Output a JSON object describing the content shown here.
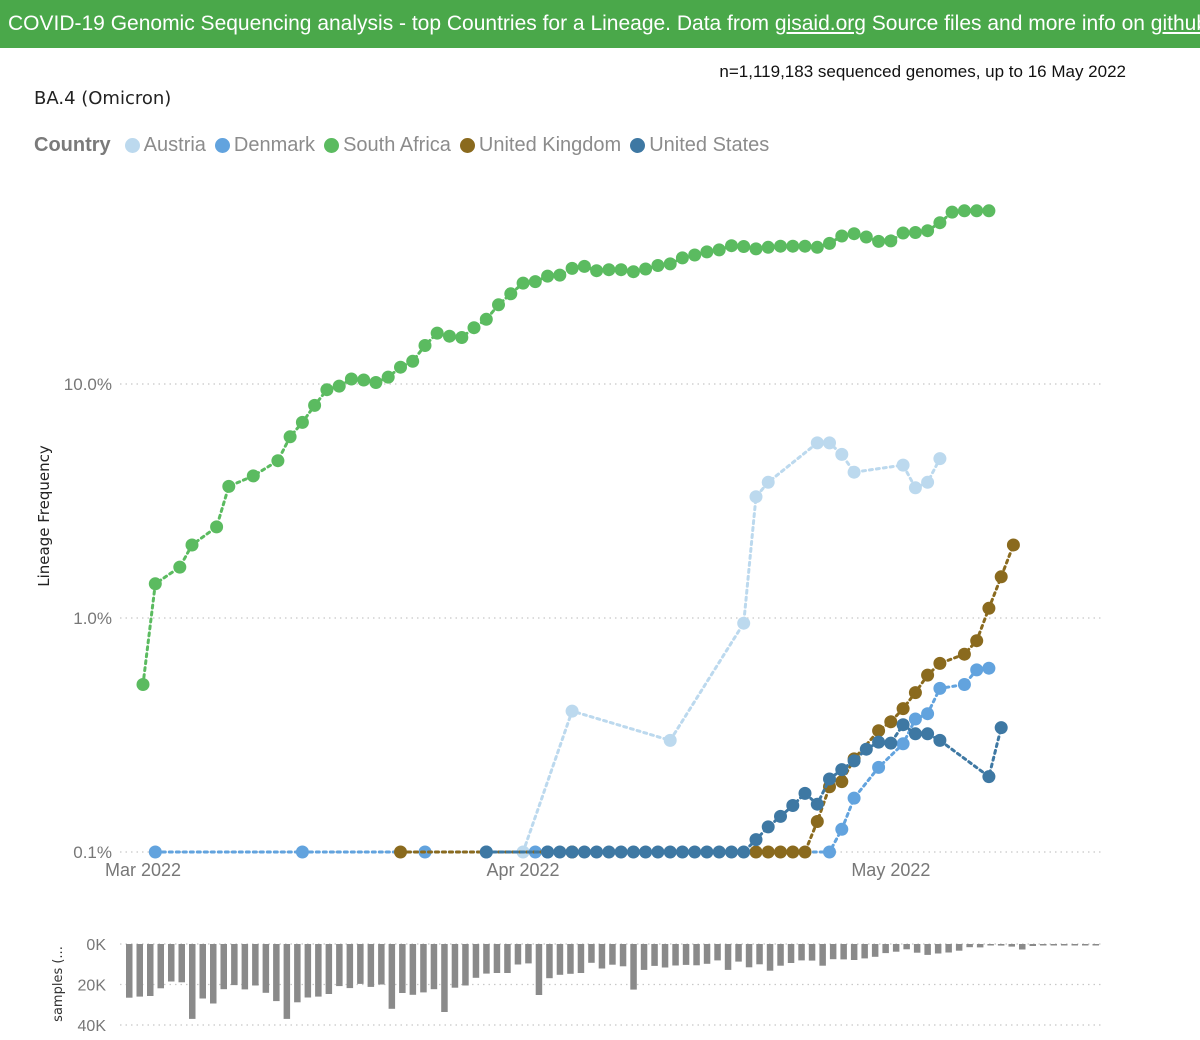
{
  "header": {
    "pre": "COVID-19 Genomic Sequencing analysis - top Countries for a Lineage. Data from ",
    "link1": "gisaid.org",
    "mid": " Source files and more info on ",
    "link2": "github",
    "post": "."
  },
  "meta": "n=1,119,183 sequenced genomes, up to 16 May 2022",
  "lineage_title": "BA.4 (Omicron)",
  "legend_title": "Country",
  "chart_data": [
    {
      "type": "line",
      "title": "BA.4 (Omicron)",
      "ylabel": "Lineage Frequency",
      "yscale": "log",
      "ylim": [
        0.1,
        55
      ],
      "yticks": [
        {
          "v": 0.1,
          "label": "0.1%"
        },
        {
          "v": 1,
          "label": "1.0%"
        },
        {
          "v": 10,
          "label": "10.0%"
        }
      ],
      "xlim": [
        "2022-03-01",
        "2022-05-17"
      ],
      "xticks": [
        {
          "date": "2022-03-01",
          "label": "Mar 2022"
        },
        {
          "date": "2022-04-01",
          "label": "Apr 2022"
        },
        {
          "date": "2022-05-01",
          "label": "May 2022"
        }
      ],
      "grid": true,
      "legend_position": "top-left",
      "series": [
        {
          "name": "Austria",
          "color": "#bcd9ee",
          "points": [
            [
              "2022-04-01",
              0.1
            ],
            [
              "2022-04-05",
              0.4
            ],
            [
              "2022-04-13",
              0.3
            ],
            [
              "2022-04-19",
              0.95
            ],
            [
              "2022-04-20",
              3.3
            ],
            [
              "2022-04-21",
              3.8
            ],
            [
              "2022-04-25",
              5.6
            ],
            [
              "2022-04-26",
              5.6
            ],
            [
              "2022-04-27",
              5.0
            ],
            [
              "2022-04-28",
              4.2
            ],
            [
              "2022-05-02",
              4.5
            ],
            [
              "2022-05-03",
              3.6
            ],
            [
              "2022-05-04",
              3.8
            ],
            [
              "2022-05-05",
              4.8
            ]
          ]
        },
        {
          "name": "Denmark",
          "color": "#62a3de",
          "points": [
            [
              "2022-03-02",
              0.1
            ],
            [
              "2022-03-14",
              0.1
            ],
            [
              "2022-03-24",
              0.1
            ],
            [
              "2022-03-29",
              0.1
            ],
            [
              "2022-04-02",
              0.1
            ],
            [
              "2022-04-03",
              0.1
            ],
            [
              "2022-04-26",
              0.1
            ],
            [
              "2022-04-27",
              0.125
            ],
            [
              "2022-04-28",
              0.17
            ],
            [
              "2022-04-30",
              0.23
            ],
            [
              "2022-05-02",
              0.29
            ],
            [
              "2022-05-03",
              0.37
            ],
            [
              "2022-05-04",
              0.39
            ],
            [
              "2022-05-05",
              0.5
            ],
            [
              "2022-05-07",
              0.52
            ],
            [
              "2022-05-08",
              0.6
            ],
            [
              "2022-05-09",
              0.61
            ]
          ]
        },
        {
          "name": "South Africa",
          "color": "#5bbb60",
          "points": [
            [
              "2022-03-01",
              0.52
            ],
            [
              "2022-03-02",
              1.4
            ],
            [
              "2022-03-04",
              1.65
            ],
            [
              "2022-03-05",
              2.05
            ],
            [
              "2022-03-07",
              2.45
            ],
            [
              "2022-03-08",
              3.65
            ],
            [
              "2022-03-10",
              4.05
            ],
            [
              "2022-03-12",
              4.7
            ],
            [
              "2022-03-13",
              5.95
            ],
            [
              "2022-03-14",
              6.85
            ],
            [
              "2022-03-15",
              8.1
            ],
            [
              "2022-03-16",
              9.45
            ],
            [
              "2022-03-17",
              9.8
            ],
            [
              "2022-03-18",
              10.5
            ],
            [
              "2022-03-19",
              10.4
            ],
            [
              "2022-03-20",
              10.15
            ],
            [
              "2022-03-21",
              10.7
            ],
            [
              "2022-03-22",
              11.8
            ],
            [
              "2022-03-23",
              12.5
            ],
            [
              "2022-03-24",
              14.6
            ],
            [
              "2022-03-25",
              16.5
            ],
            [
              "2022-03-26",
              16.0
            ],
            [
              "2022-03-27",
              15.8
            ],
            [
              "2022-03-28",
              17.4
            ],
            [
              "2022-03-29",
              18.9
            ],
            [
              "2022-03-30",
              21.8
            ],
            [
              "2022-03-31",
              24.3
            ],
            [
              "2022-04-01",
              27.0
            ],
            [
              "2022-04-02",
              27.4
            ],
            [
              "2022-04-03",
              28.9
            ],
            [
              "2022-04-04",
              29.2
            ],
            [
              "2022-04-05",
              31.2
            ],
            [
              "2022-04-06",
              31.8
            ],
            [
              "2022-04-07",
              30.5
            ],
            [
              "2022-04-08",
              30.8
            ],
            [
              "2022-04-09",
              30.8
            ],
            [
              "2022-04-10",
              30.2
            ],
            [
              "2022-04-11",
              31.0
            ],
            [
              "2022-04-12",
              32.1
            ],
            [
              "2022-04-13",
              32.6
            ],
            [
              "2022-04-14",
              34.6
            ],
            [
              "2022-04-15",
              35.6
            ],
            [
              "2022-04-16",
              36.7
            ],
            [
              "2022-04-17",
              37.4
            ],
            [
              "2022-04-18",
              39.0
            ],
            [
              "2022-04-19",
              38.7
            ],
            [
              "2022-04-20",
              37.8
            ],
            [
              "2022-04-21",
              38.4
            ],
            [
              "2022-04-22",
              38.8
            ],
            [
              "2022-04-23",
              38.8
            ],
            [
              "2022-04-24",
              38.8
            ],
            [
              "2022-04-25",
              38.4
            ],
            [
              "2022-04-26",
              39.9
            ],
            [
              "2022-04-27",
              42.9
            ],
            [
              "2022-04-28",
              43.9
            ],
            [
              "2022-04-29",
              42.5
            ],
            [
              "2022-04-30",
              40.7
            ],
            [
              "2022-05-01",
              40.9
            ],
            [
              "2022-05-02",
              44.2
            ],
            [
              "2022-05-03",
              44.4
            ],
            [
              "2022-05-04",
              45.2
            ],
            [
              "2022-05-05",
              48.9
            ],
            [
              "2022-05-06",
              54.3
            ],
            [
              "2022-05-07",
              55.0
            ],
            [
              "2022-05-08",
              55.0
            ],
            [
              "2022-05-09",
              55.0
            ]
          ]
        },
        {
          "name": "United Kingdom",
          "color": "#8a6a1e",
          "points": [
            [
              "2022-03-22",
              0.1
            ],
            [
              "2022-04-05",
              0.1
            ],
            [
              "2022-04-20",
              0.1
            ],
            [
              "2022-04-21",
              0.1
            ],
            [
              "2022-04-22",
              0.1
            ],
            [
              "2022-04-23",
              0.1
            ],
            [
              "2022-04-24",
              0.1
            ],
            [
              "2022-04-25",
              0.135
            ],
            [
              "2022-04-26",
              0.19
            ],
            [
              "2022-04-27",
              0.2
            ],
            [
              "2022-04-28",
              0.25
            ],
            [
              "2022-04-30",
              0.33
            ],
            [
              "2022-05-01",
              0.36
            ],
            [
              "2022-05-02",
              0.41
            ],
            [
              "2022-05-03",
              0.48
            ],
            [
              "2022-05-04",
              0.57
            ],
            [
              "2022-05-05",
              0.64
            ],
            [
              "2022-05-07",
              0.7
            ],
            [
              "2022-05-08",
              0.8
            ],
            [
              "2022-05-09",
              1.1
            ],
            [
              "2022-05-10",
              1.5
            ],
            [
              "2022-05-11",
              2.05
            ]
          ]
        },
        {
          "name": "United States",
          "color": "#3e78a3",
          "points": [
            [
              "2022-03-29",
              0.1
            ],
            [
              "2022-04-03",
              0.1
            ],
            [
              "2022-04-04",
              0.1
            ],
            [
              "2022-04-05",
              0.1
            ],
            [
              "2022-04-06",
              0.1
            ],
            [
              "2022-04-07",
              0.1
            ],
            [
              "2022-04-08",
              0.1
            ],
            [
              "2022-04-09",
              0.1
            ],
            [
              "2022-04-10",
              0.1
            ],
            [
              "2022-04-11",
              0.1
            ],
            [
              "2022-04-12",
              0.1
            ],
            [
              "2022-04-13",
              0.1
            ],
            [
              "2022-04-14",
              0.1
            ],
            [
              "2022-04-15",
              0.1
            ],
            [
              "2022-04-16",
              0.1
            ],
            [
              "2022-04-17",
              0.1
            ],
            [
              "2022-04-18",
              0.1
            ],
            [
              "2022-04-19",
              0.1
            ],
            [
              "2022-04-20",
              0.113
            ],
            [
              "2022-04-21",
              0.128
            ],
            [
              "2022-04-22",
              0.142
            ],
            [
              "2022-04-23",
              0.158
            ],
            [
              "2022-04-24",
              0.178
            ],
            [
              "2022-04-25",
              0.16
            ],
            [
              "2022-04-26",
              0.205
            ],
            [
              "2022-04-27",
              0.225
            ],
            [
              "2022-04-28",
              0.245
            ],
            [
              "2022-04-29",
              0.275
            ],
            [
              "2022-04-30",
              0.295
            ],
            [
              "2022-05-01",
              0.292
            ],
            [
              "2022-05-02",
              0.35
            ],
            [
              "2022-05-03",
              0.32
            ],
            [
              "2022-05-04",
              0.32
            ],
            [
              "2022-05-05",
              0.3
            ],
            [
              "2022-05-09",
              0.21
            ],
            [
              "2022-05-10",
              0.34
            ]
          ]
        }
      ]
    },
    {
      "type": "bar",
      "ylabel": "samples (...",
      "yticks": [
        {
          "v": 0,
          "label": "0K"
        },
        {
          "v": 20000,
          "label": "20K"
        },
        {
          "v": 40000,
          "label": "40K"
        }
      ],
      "ylim": [
        0,
        42000
      ],
      "grid": true,
      "x_start": "2022-03-01",
      "values": [
        26500,
        26000,
        25700,
        21900,
        18500,
        18900,
        37000,
        26900,
        29400,
        22300,
        20300,
        22400,
        20500,
        24100,
        28200,
        37000,
        28800,
        26400,
        26000,
        24700,
        20800,
        21800,
        19700,
        21200,
        20000,
        32000,
        24200,
        25100,
        23900,
        22300,
        33600,
        21600,
        20500,
        16700,
        14600,
        14300,
        14300,
        10100,
        9600,
        25200,
        16900,
        15200,
        14700,
        14300,
        9300,
        12100,
        10200,
        11000,
        22500,
        12800,
        10800,
        11600,
        10600,
        10300,
        10500,
        9800,
        8100,
        12800,
        8700,
        11500,
        10000,
        13200,
        10700,
        9400,
        8100,
        8200,
        10700,
        7500,
        7600,
        7900,
        7100,
        6300,
        4500,
        3800,
        2600,
        4300,
        5400,
        4700,
        4200,
        3300,
        1600,
        1700,
        600,
        800,
        1300,
        2700,
        1000,
        700,
        500,
        500,
        500,
        500,
        500
      ]
    }
  ]
}
